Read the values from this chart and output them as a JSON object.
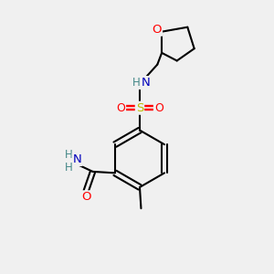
{
  "bg_color": "#f0f0f0",
  "bond_color": "#000000",
  "atom_colors": {
    "O": "#ff0000",
    "N": "#0000bb",
    "S": "#bbbb00",
    "C": "#000000",
    "H": "#448888"
  },
  "figsize": [
    3.0,
    3.0
  ],
  "dpi": 100
}
